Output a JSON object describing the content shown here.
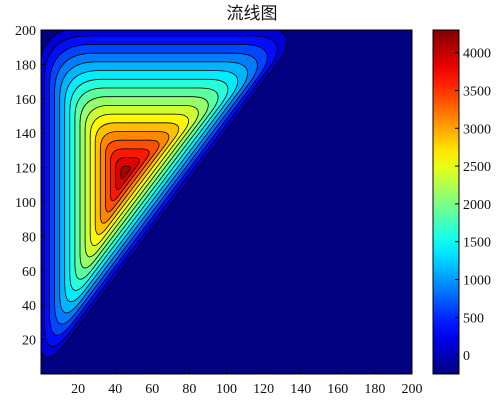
{
  "chart_data": {
    "type": "heatmap",
    "subtype": "filled-contour",
    "title": "流线图",
    "xlabel": "",
    "ylabel": "",
    "xlim": [
      0,
      200
    ],
    "ylim": [
      0,
      200
    ],
    "xticks": [
      20,
      40,
      60,
      80,
      100,
      120,
      140,
      160,
      180,
      200
    ],
    "yticks": [
      20,
      40,
      60,
      80,
      100,
      120,
      140,
      160,
      180,
      200
    ],
    "colormap": "jet",
    "colorbar": {
      "range": [
        -250,
        4300
      ],
      "ticks": [
        0,
        500,
        1000,
        1500,
        2000,
        2500,
        3000,
        3500,
        4000
      ],
      "position": "right"
    },
    "peak": {
      "x": 45,
      "y": 117,
      "value": 4300
    },
    "levels": [
      0,
      250,
      500,
      750,
      1000,
      1250,
      1500,
      1750,
      2000,
      2250,
      2500,
      2750,
      3000,
      3250,
      3500,
      3750,
      4000
    ],
    "region": "triangular domain bounded by x = 0, y = 200 and the diagonal from (0,0) to (140,200)",
    "grid": false,
    "background_value": -250
  }
}
